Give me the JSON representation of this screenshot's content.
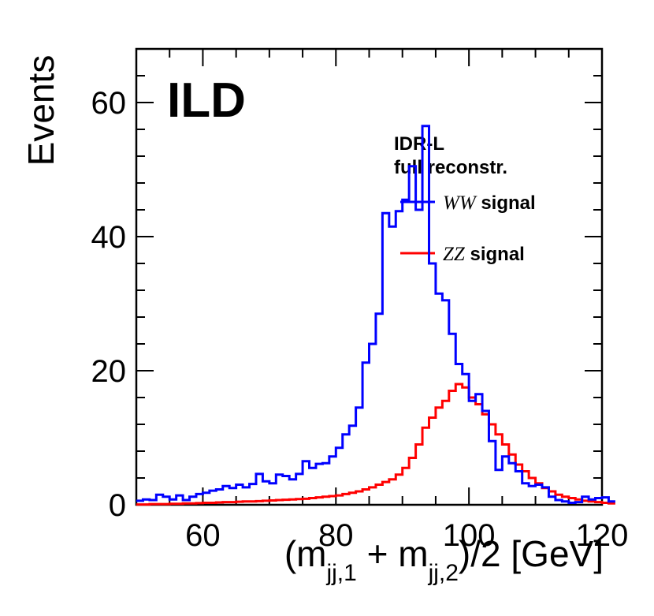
{
  "chart_data": {
    "type": "line",
    "style": "step-histogram",
    "title": "ILD",
    "xlabel": {
      "prefix": "(m",
      "sub1": "jj,1",
      "middle": " + m",
      "sub2": "jj,2",
      "suffix": ")/2 [GeV]"
    },
    "ylabel": "Events",
    "xlim": [
      50,
      120
    ],
    "ylim": [
      0,
      68
    ],
    "bin_width": 1,
    "x_ticks": [
      "60",
      "80",
      "100",
      "120"
    ],
    "y_ticks": [
      "0",
      "20",
      "40",
      "60"
    ],
    "grid": false,
    "legend_position": "top-right",
    "legend_header": [
      "IDR-L",
      "full reconstr."
    ],
    "series": [
      {
        "name": "WW signal",
        "name_italic": "WW",
        "name_rest": " signal",
        "color": "#0000ff",
        "x_start": 50,
        "values": [
          0.6,
          0.8,
          0.7,
          1.5,
          1.2,
          0.8,
          1.4,
          0.7,
          1.2,
          1.6,
          1.8,
          2.1,
          2.3,
          2.8,
          2.5,
          3.0,
          2.6,
          3.1,
          4.6,
          3.5,
          3.2,
          4.5,
          4.3,
          3.8,
          4.6,
          6.5,
          5.5,
          6.1,
          6.2,
          7.2,
          8.5,
          10.5,
          11.8,
          14.5,
          21.2,
          24.0,
          28.5,
          43.5,
          41.5,
          43.8,
          45.5,
          50.5,
          44.0,
          56.5,
          36.0,
          31.5,
          30.5,
          25.5,
          21.0,
          19.5,
          15.5,
          16.5,
          14.0,
          9.5,
          5.2,
          7.2,
          6.2,
          5.0,
          3.2,
          2.8,
          3.0,
          2.6,
          1.2,
          0.7,
          0.5,
          0.3,
          0.4,
          1.2,
          0.8,
          1.0,
          1.1,
          0.5
        ]
      },
      {
        "name": "ZZ signal",
        "name_italic": "ZZ",
        "name_rest": " signal",
        "color": "#ff0000",
        "x_start": 50,
        "values": [
          0.05,
          0.05,
          0.1,
          0.1,
          0.1,
          0.15,
          0.15,
          0.2,
          0.2,
          0.25,
          0.3,
          0.3,
          0.35,
          0.4,
          0.4,
          0.45,
          0.5,
          0.5,
          0.55,
          0.6,
          0.65,
          0.7,
          0.75,
          0.8,
          0.85,
          0.9,
          1.0,
          1.1,
          1.2,
          1.3,
          1.4,
          1.6,
          1.8,
          2.0,
          2.3,
          2.6,
          3.0,
          3.4,
          3.8,
          4.5,
          5.5,
          7.0,
          9.0,
          11.5,
          13.0,
          14.5,
          15.5,
          17.0,
          18.0,
          17.5,
          16.0,
          15.0,
          13.5,
          12.0,
          10.5,
          9.0,
          7.5,
          6.0,
          5.0,
          4.0,
          3.2,
          2.5,
          2.0,
          1.5,
          1.2,
          1.0,
          0.8,
          0.6,
          0.5,
          0.4,
          0.3,
          0.2
        ]
      }
    ]
  }
}
